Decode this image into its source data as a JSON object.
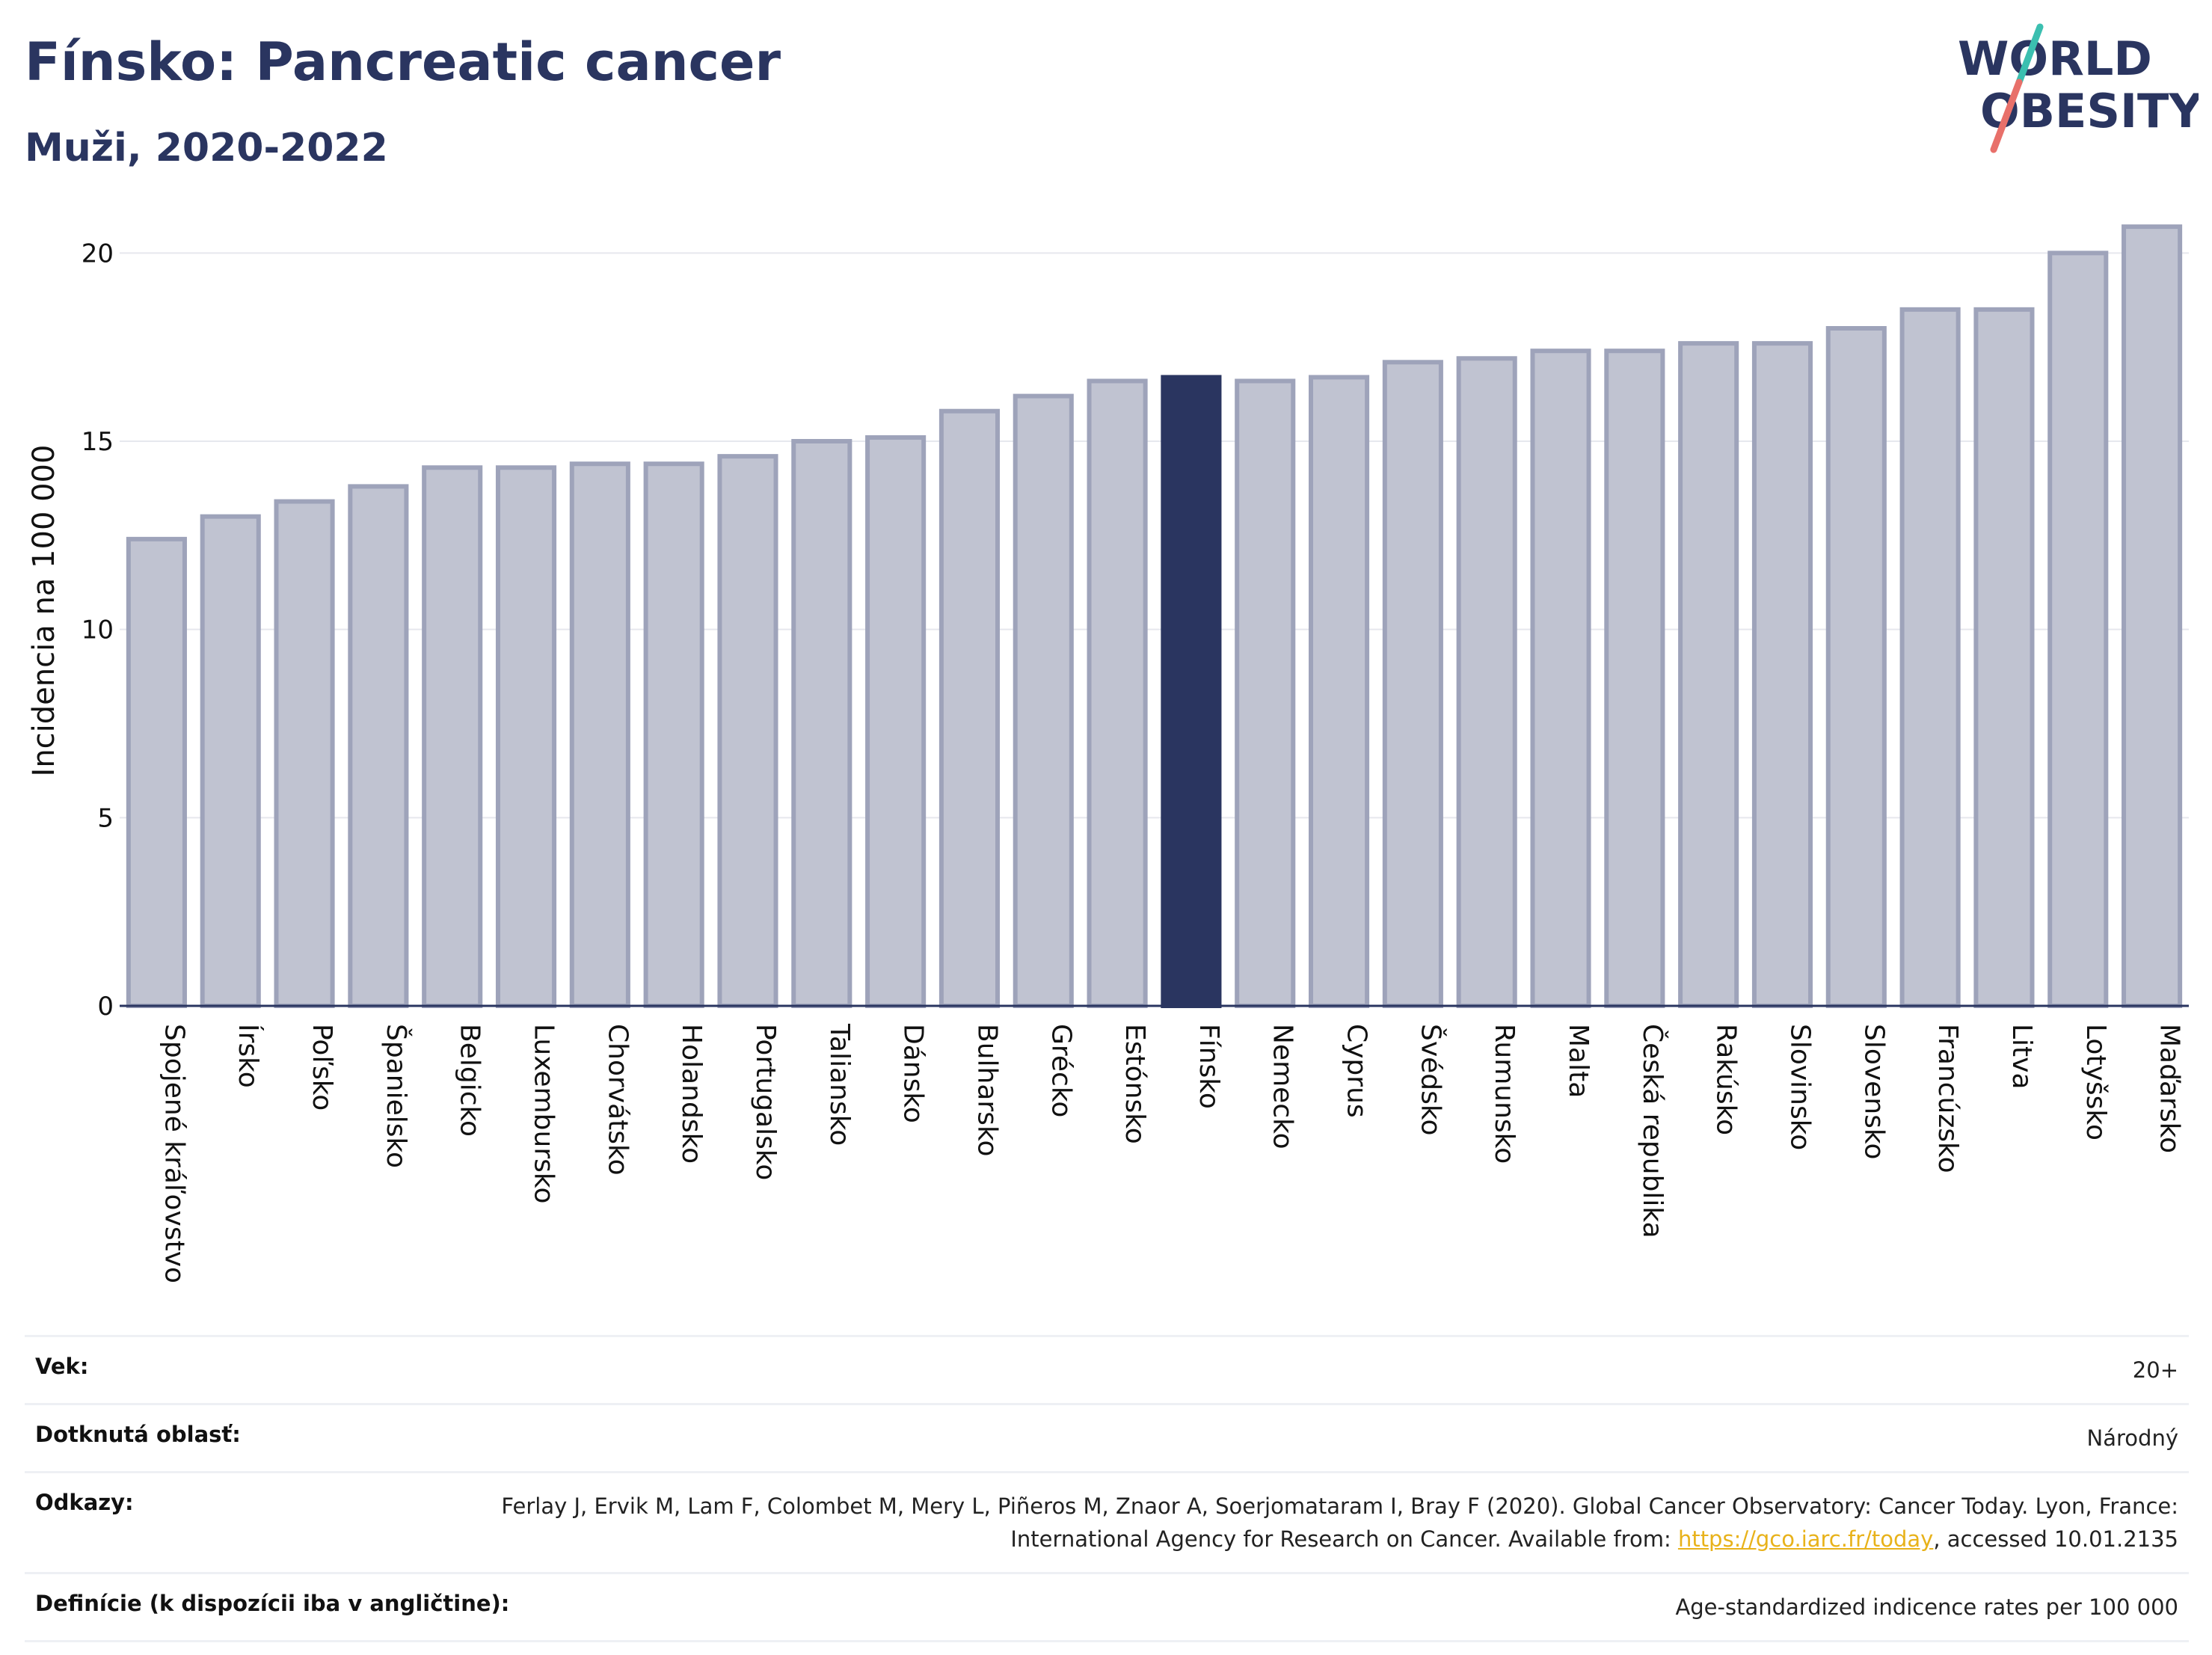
{
  "header": {
    "title": "Fínsko: Pancreatic cancer",
    "subtitle": "Muži, 2020-2022"
  },
  "logo": {
    "line1": "WORLD",
    "line2": "OBESITY",
    "text_color": "#2a3560",
    "slash_top_color": "#3bbfb0",
    "slash_bottom_color": "#e8706a"
  },
  "colors": {
    "bar_default_fill": "#c0c3d1",
    "bar_default_stroke": "#9ea3ba",
    "bar_highlight_fill": "#2a3560",
    "grid": "#e6e8ee",
    "axis": "#2a3560",
    "text": "#111111"
  },
  "chart_data": {
    "type": "bar",
    "title": "Fínsko: Pancreatic cancer",
    "subtitle": "Muži, 2020-2022",
    "xlabel": "",
    "ylabel": "Incidencia na 100 000",
    "ylim": [
      0,
      21
    ],
    "yticks": [
      0,
      5,
      10,
      15,
      20
    ],
    "grid": true,
    "highlight": "Fínsko",
    "categories": [
      "Spojené kráľovstvo",
      "Írsko",
      "Poľsko",
      "Španielsko",
      "Belgicko",
      "Luxembursko",
      "Chorvátsko",
      "Holandsko",
      "Portugalsko",
      "Taliansko",
      "Dánsko",
      "Bulharsko",
      "Grécko",
      "Estónsko",
      "Fínsko",
      "Nemecko",
      "Cyprus",
      "Švédsko",
      "Rumunsko",
      "Malta",
      "Česká republika",
      "Rakúsko",
      "Slovinsko",
      "Slovensko",
      "Francúzsko",
      "Litva",
      "Lotyšsko",
      "Maďarsko"
    ],
    "values": [
      12.4,
      13.0,
      13.4,
      13.8,
      14.3,
      14.3,
      14.4,
      14.4,
      14.6,
      15.0,
      15.1,
      15.8,
      16.2,
      16.6,
      16.7,
      16.6,
      16.7,
      17.1,
      17.2,
      17.4,
      17.4,
      17.6,
      17.6,
      18.0,
      18.5,
      18.5,
      20.0,
      20.7
    ]
  },
  "info": {
    "age_label": "Vek:",
    "age_value": "20+",
    "area_label": "Dotknutá oblasť:",
    "area_value": "Národný",
    "refs_label": "Odkazy:",
    "refs_text_before": "Ferlay J, Ervik M, Lam F, Colombet M, Mery L, Piñeros M, Znaor A, Soerjomataram I, Bray F (2020). Global Cancer Observatory: Cancer Today. Lyon, France: International Agency for Research on Cancer. Available from: ",
    "refs_link": "https://gco.iarc.fr/today",
    "refs_text_after": ", accessed 10.01.2135",
    "def_label": "Definície (k dispozícii iba v angličtine):",
    "def_value": "Age-standardized indicence rates per 100 000"
  }
}
